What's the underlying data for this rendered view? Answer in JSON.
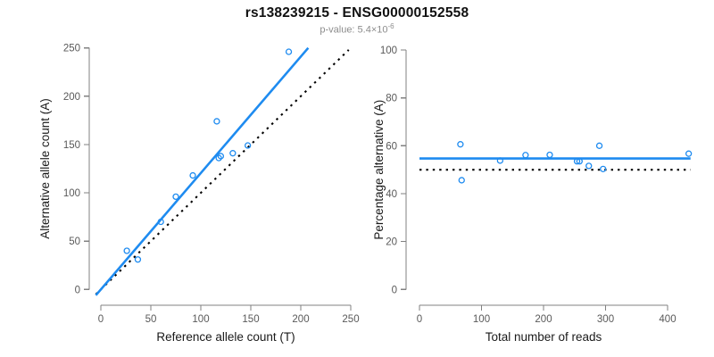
{
  "header": {
    "title": "rs138239215 - ENSG00000152558",
    "subtitle_prefix": "p-value: 5.4×10",
    "subtitle_exponent": "-6"
  },
  "colors": {
    "accent_blue": "#1e8bf0",
    "null_black": "#000000",
    "axis_line": "#808080",
    "tick_label": "#595959",
    "axis_title": "#1a1a1a",
    "subtitle_gray": "#8c8c8c"
  },
  "chart_data": [
    {
      "id": "allele-counts",
      "type": "scatter",
      "panel": "left",
      "xlabel": "Reference allele count (T)",
      "ylabel": "Alternative allele count (A)",
      "xlim": [
        0,
        250
      ],
      "ylim": [
        0,
        250
      ],
      "xticks": [
        0,
        50,
        100,
        150,
        200,
        250
      ],
      "yticks": [
        0,
        50,
        100,
        150,
        200,
        250
      ],
      "grid": false,
      "legend": null,
      "points": [
        [
          26,
          40
        ],
        [
          37,
          31
        ],
        [
          60,
          70
        ],
        [
          75,
          96
        ],
        [
          92,
          118
        ],
        [
          118,
          136
        ],
        [
          120,
          138
        ],
        [
          132,
          141
        ],
        [
          116,
          174
        ],
        [
          147,
          149
        ],
        [
          188,
          246
        ]
      ],
      "fit_line": {
        "slope": 1.205,
        "intercept": 0,
        "style": "solid",
        "color": "#1e8bf0"
      },
      "reference_line": {
        "slope": 1,
        "intercept": 0,
        "style": "dotted",
        "color": "#000000"
      }
    },
    {
      "id": "percentage-vs-coverage",
      "type": "scatter",
      "panel": "right",
      "xlabel": "Total number of reads",
      "ylabel": "Percentage alternative (A)",
      "xlim": [
        0,
        440
      ],
      "ylim": [
        0,
        100
      ],
      "xticks": [
        0,
        100,
        200,
        300,
        400
      ],
      "yticks": [
        0,
        20,
        40,
        60,
        80,
        100
      ],
      "grid": false,
      "legend": null,
      "points": [
        [
          66,
          60.6
        ],
        [
          68,
          45.6
        ],
        [
          130,
          53.8
        ],
        [
          171,
          56.1
        ],
        [
          210,
          56.2
        ],
        [
          254,
          53.5
        ],
        [
          258,
          53.5
        ],
        [
          273,
          51.6
        ],
        [
          290,
          60.0
        ],
        [
          296,
          50.3
        ],
        [
          434,
          56.7
        ]
      ],
      "fit_line": {
        "y": 54.7,
        "style": "solid",
        "color": "#1e8bf0"
      },
      "reference_line": {
        "y": 50,
        "style": "dotted",
        "color": "#000000"
      }
    }
  ]
}
